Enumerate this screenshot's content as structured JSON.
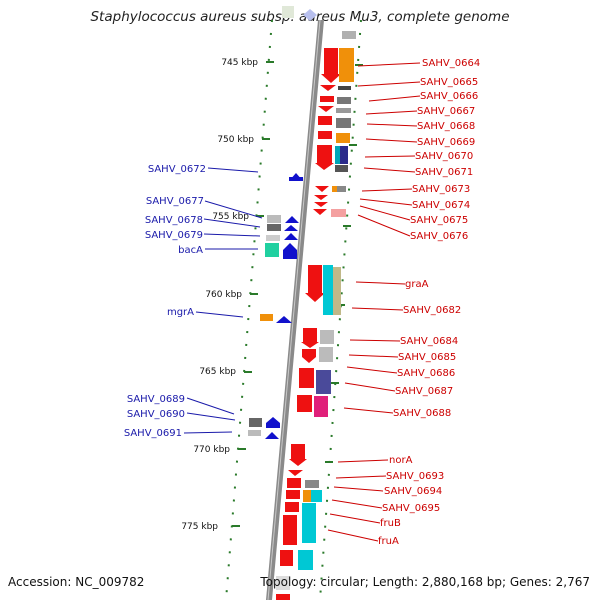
{
  "title": "Staphylococcus aureus subsp. aureus Mu3, complete genome",
  "accession": "Accession: NC_009782",
  "topology": "Topology: circular; Length: 2,880,168 bp; Genes: 2,767",
  "scale_labels": [
    "745 kbp",
    "750 kbp",
    "755 kbp",
    "760 kbp",
    "765 kbp",
    "770 kbp",
    "775 kbp"
  ],
  "forward_genes": [
    "SAHV_0664",
    "SAHV_0665",
    "SAHV_0666",
    "SAHV_0667",
    "SAHV_0668",
    "SAHV_0669",
    "SAHV_0670",
    "SAHV_0671",
    "SAHV_0673",
    "SAHV_0674",
    "SAHV_0675",
    "SAHV_0676",
    "graA",
    "SAHV_0682",
    "SAHV_0684",
    "SAHV_0685",
    "SAHV_0686",
    "SAHV_0687",
    "SAHV_0688",
    "norA",
    "SAHV_0693",
    "SAHV_0694",
    "SAHV_0695",
    "fruB",
    "fruA"
  ],
  "reverse_genes": [
    "SAHV_0672",
    "SAHV_0677",
    "SAHV_0678",
    "SAHV_0679",
    "bacA",
    "mgrA",
    "SAHV_0689",
    "SAHV_0690",
    "SAHV_0691"
  ],
  "colors": {
    "forward": "#cc0000",
    "reverse": "#1a1aaa",
    "gene_forward": "#ee1111",
    "gene_reverse": "#1111cc",
    "backbone": "#8a8a8a",
    "tick": "#2a7a2a"
  }
}
